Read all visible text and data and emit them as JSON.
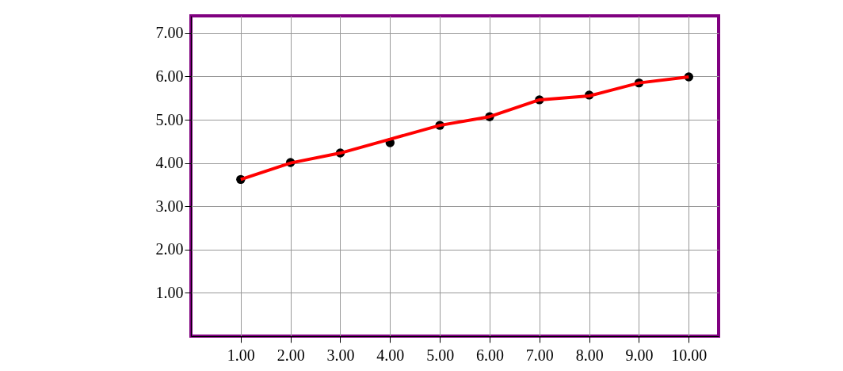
{
  "chart_data": {
    "type": "line",
    "x": [
      1,
      2,
      3,
      4,
      5,
      6,
      7,
      8,
      9,
      10
    ],
    "series": [
      {
        "type": "scatter",
        "color": "#000000",
        "marker": "circle",
        "values": [
          3.62,
          4.01,
          4.23,
          4.47,
          4.87,
          5.07,
          5.46,
          5.57,
          5.85,
          5.99
        ]
      },
      {
        "color": "#ff0000",
        "values": [
          3.62,
          4.0,
          4.23,
          4.55,
          4.87,
          5.07,
          5.46,
          5.55,
          5.85,
          5.99
        ]
      }
    ],
    "xlim": [
      0,
      10.6
    ],
    "xticks": [
      {
        "value": 1,
        "label": "1.00"
      },
      {
        "value": 2,
        "label": "2.00"
      },
      {
        "value": 3,
        "label": "3.00"
      },
      {
        "value": 4,
        "label": "4.00"
      },
      {
        "value": 5,
        "label": "5.00"
      },
      {
        "value": 6,
        "label": "6.00"
      },
      {
        "value": 7,
        "label": "7.00"
      },
      {
        "value": 8,
        "label": "8.00"
      },
      {
        "value": 9,
        "label": "9.00"
      },
      {
        "value": 10,
        "label": "10.00"
      }
    ],
    "ylim": [
      0,
      7.4
    ],
    "yticks": [
      {
        "value": 1,
        "label": "1.00"
      },
      {
        "value": 2,
        "label": "2.00"
      },
      {
        "value": 3,
        "label": "3.00"
      },
      {
        "value": 4,
        "label": "4.00"
      },
      {
        "value": 5,
        "label": "5.00"
      },
      {
        "value": 6,
        "label": "6.00"
      },
      {
        "value": 7,
        "label": "7.00"
      }
    ],
    "grid": true
  }
}
